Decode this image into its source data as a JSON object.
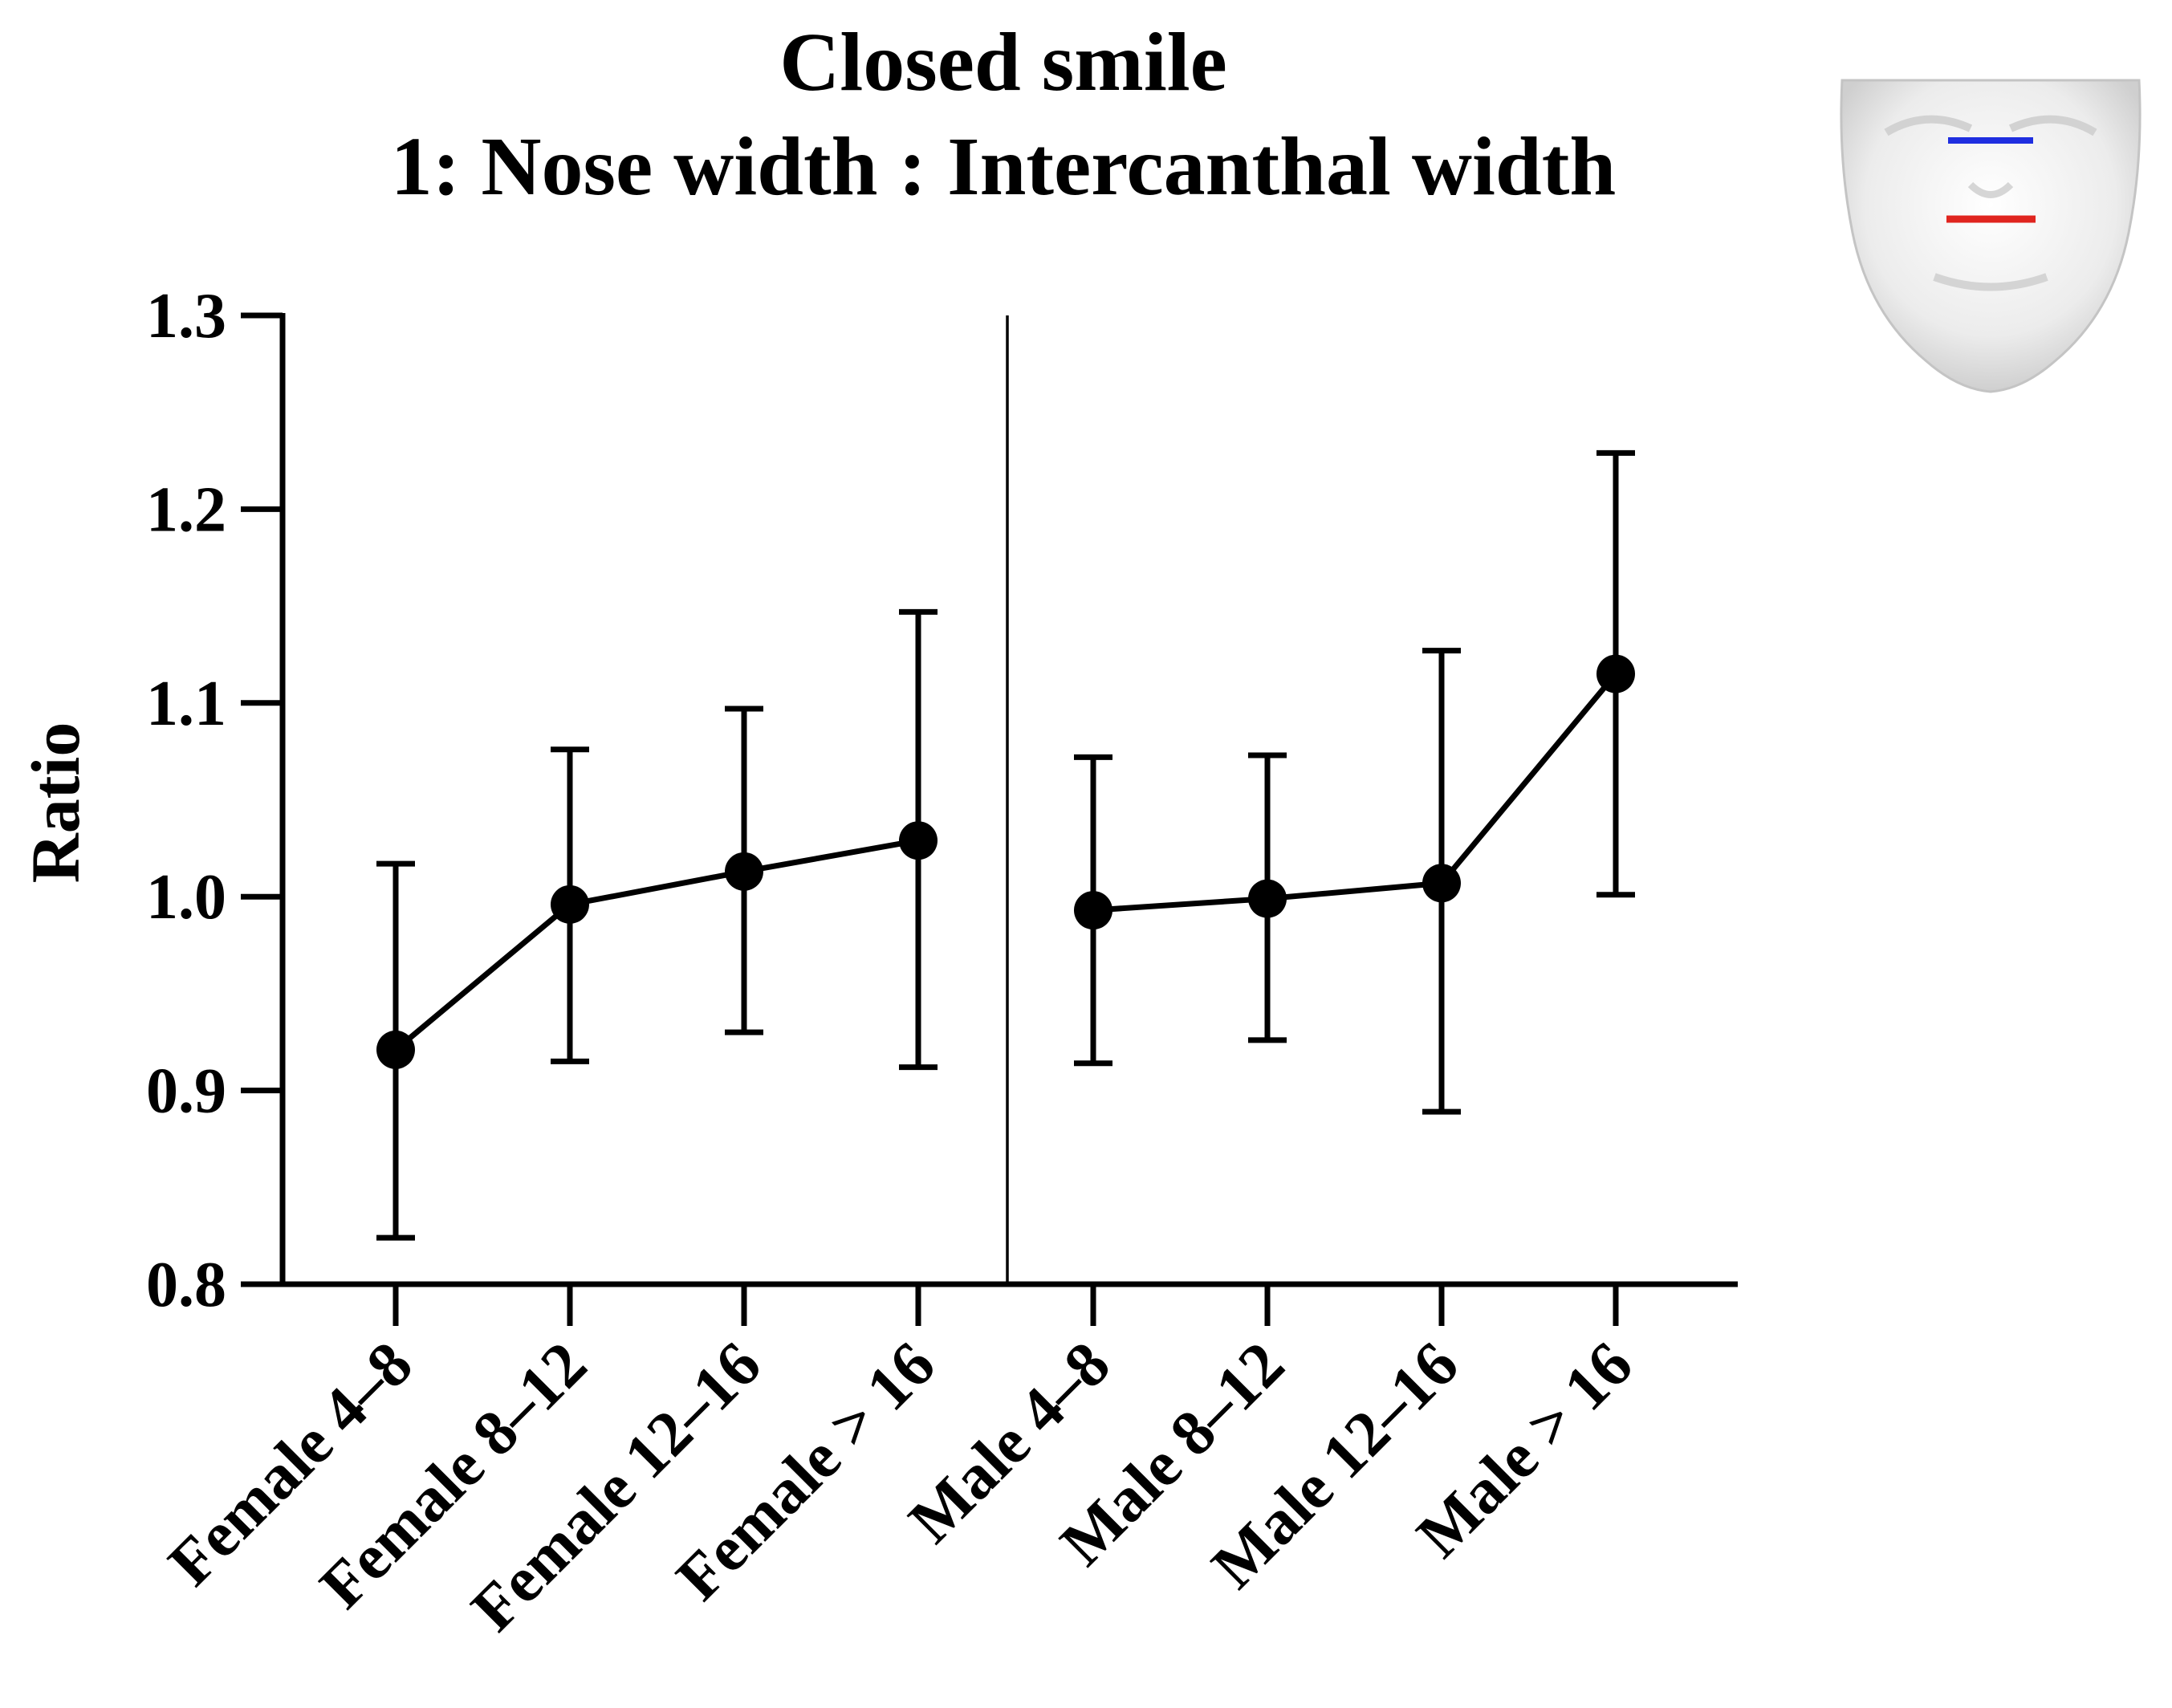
{
  "chart_data": {
    "type": "line",
    "title": "Closed smile",
    "subtitle": "1: Nose width : Intercanthal width",
    "xlabel": "",
    "ylabel": "Ratio",
    "ylim": [
      0.8,
      1.3
    ],
    "yticks": [
      "0.8",
      "0.9",
      "1.0",
      "1.1",
      "1.2",
      "1.3"
    ],
    "grid": false,
    "groups": [
      {
        "name": "Female",
        "categories": [
          "Female 4–8",
          "Female 8–12",
          "Female 12–16",
          "Female > 16"
        ],
        "values": [
          0.921,
          0.996,
          1.013,
          1.029
        ],
        "error_low": [
          0.824,
          0.915,
          0.93,
          0.912
        ],
        "error_high": [
          1.017,
          1.076,
          1.097,
          1.147
        ]
      },
      {
        "name": "Male",
        "categories": [
          "Male 4–8",
          "Male 8–12",
          "Male 12–16",
          "Male > 16"
        ],
        "values": [
          0.993,
          0.999,
          1.007,
          1.115
        ],
        "error_low": [
          0.914,
          0.926,
          0.889,
          1.001
        ],
        "error_high": [
          1.072,
          1.073,
          1.127,
          1.229
        ]
      }
    ],
    "inset": {
      "description": "face model",
      "upper_line_color": "#1f2ee0",
      "lower_line_color": "#e0251f"
    }
  }
}
